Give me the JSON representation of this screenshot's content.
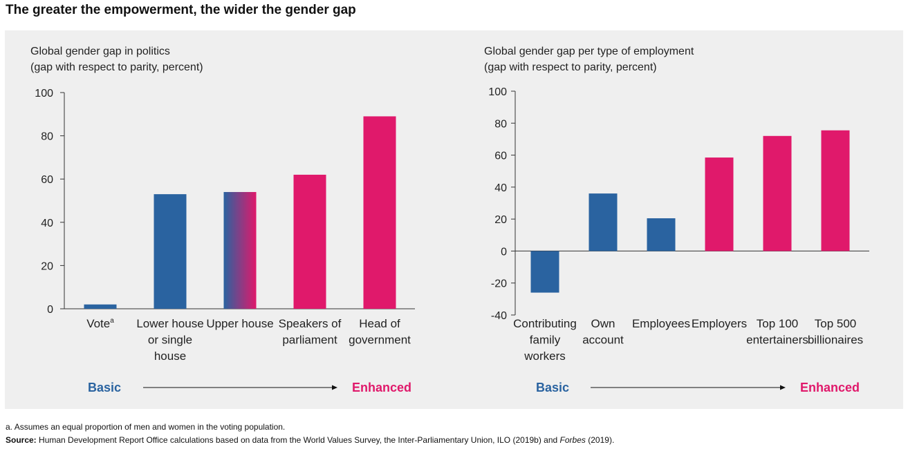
{
  "title": "The greater the empowerment, the wider the gender gap",
  "chart_data": [
    {
      "type": "bar",
      "title": "Global gender gap in politics",
      "subtitle": "(gap with respect to parity, percent)",
      "categories": [
        "Vote",
        "Lower house or single house",
        "Upper house",
        "Speakers of parliament",
        "Head of government"
      ],
      "category_lines": [
        [
          "Vote"
        ],
        [
          "Lower house",
          "or single",
          "house"
        ],
        [
          "Upper house"
        ],
        [
          "Speakers of",
          "parliament"
        ],
        [
          "Head of",
          "government"
        ]
      ],
      "category_superscripts": [
        "a",
        "",
        "",
        "",
        ""
      ],
      "values": [
        2,
        53,
        54,
        62,
        89
      ],
      "bar_colors": [
        "#2a63a0",
        "#2a63a0",
        "gradient",
        "#e0196b",
        "#e0196b"
      ],
      "ylim": [
        0,
        100
      ],
      "yticks": [
        0,
        20,
        40,
        60,
        80,
        100
      ],
      "yticklabels": [
        "0",
        "20",
        "40",
        "60",
        "80",
        "100"
      ],
      "scale_start_label": "Basic",
      "scale_end_label": "Enhanced"
    },
    {
      "type": "bar",
      "title": "Global gender gap per type of employment",
      "subtitle": "(gap with respect to parity, percent)",
      "categories": [
        "Contributing family workers",
        "Own account",
        "Employees",
        "Employers",
        "Top 100 entertainers",
        "Top 500 billionaires"
      ],
      "category_lines": [
        [
          "Contributing",
          "family",
          "workers"
        ],
        [
          "Own",
          "account"
        ],
        [
          "Employees"
        ],
        [
          "Employers"
        ],
        [
          "Top 100",
          "entertainers"
        ],
        [
          "Top 500",
          "billionaires"
        ]
      ],
      "values": [
        -26,
        36,
        20.5,
        58.5,
        72,
        75.5
      ],
      "bar_colors": [
        "#2a63a0",
        "#2a63a0",
        "#2a63a0",
        "#e0196b",
        "#e0196b",
        "#e0196b"
      ],
      "ylim": [
        -40,
        100
      ],
      "yticks": [
        -40,
        -20,
        0,
        20,
        40,
        60,
        80,
        100
      ],
      "yticklabels": [
        "-40",
        "-20",
        "0",
        "20",
        "40",
        "60",
        "80",
        "100"
      ],
      "scale_start_label": "Basic",
      "scale_end_label": "Enhanced"
    }
  ],
  "colors": {
    "basic": "#2a63a0",
    "enhanced": "#e0196b",
    "axis": "#333333"
  },
  "footnote": {
    "marker": "a.",
    "text": "Assumes an equal proportion of men and women in the voting population."
  },
  "source": {
    "label": "Source:",
    "text_before": "Human Development Report Office calculations based on data from the World Values Survey, the Inter-Parliamentary Union, ILO (2019b) and",
    "italic": "Forbes",
    "text_after": "(2019)."
  }
}
